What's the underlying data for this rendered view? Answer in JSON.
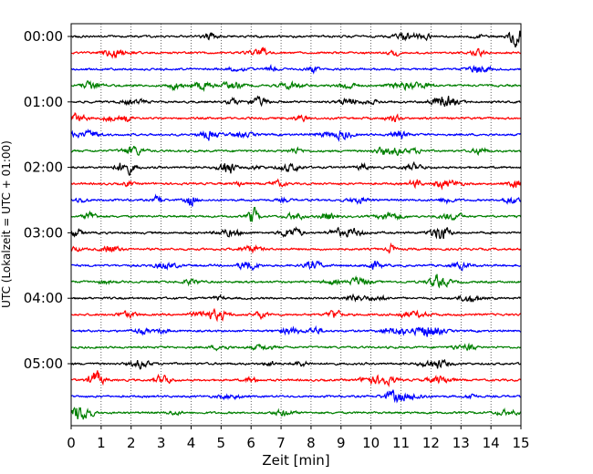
{
  "chart_data": {
    "type": "line",
    "xlabel": "Zeit  [min]",
    "ylabel": "UTC (Lokalzeit = UTC + 01:00)",
    "xlim": [
      0,
      15
    ],
    "xticks": [
      "0",
      "1",
      "2",
      "3",
      "4",
      "5",
      "6",
      "7",
      "8",
      "9",
      "10",
      "11",
      "12",
      "13",
      "14",
      "15"
    ],
    "yticks": [
      "00:00",
      "01:00",
      "02:00",
      "03:00",
      "04:00",
      "05:00"
    ],
    "ytick_minutes": [
      0,
      60,
      120,
      180,
      240,
      300
    ],
    "trace_interval_min": 15,
    "trace_count": 24,
    "trace_colors": [
      "#000000",
      "#ff0000",
      "#0000ff",
      "#008000"
    ],
    "grid": "vertical dotted at each minute",
    "series": [
      {
        "start": "00:00",
        "color": "#000000"
      },
      {
        "start": "00:15",
        "color": "#ff0000"
      },
      {
        "start": "00:30",
        "color": "#0000ff"
      },
      {
        "start": "00:45",
        "color": "#008000"
      },
      {
        "start": "01:00",
        "color": "#000000"
      },
      {
        "start": "01:15",
        "color": "#ff0000"
      },
      {
        "start": "01:30",
        "color": "#0000ff"
      },
      {
        "start": "01:45",
        "color": "#008000"
      },
      {
        "start": "02:00",
        "color": "#000000"
      },
      {
        "start": "02:15",
        "color": "#ff0000"
      },
      {
        "start": "02:30",
        "color": "#0000ff"
      },
      {
        "start": "02:45",
        "color": "#008000"
      },
      {
        "start": "03:00",
        "color": "#000000"
      },
      {
        "start": "03:15",
        "color": "#ff0000"
      },
      {
        "start": "03:30",
        "color": "#0000ff"
      },
      {
        "start": "03:45",
        "color": "#008000"
      },
      {
        "start": "04:00",
        "color": "#000000"
      },
      {
        "start": "04:15",
        "color": "#ff0000"
      },
      {
        "start": "04:30",
        "color": "#0000ff"
      },
      {
        "start": "04:45",
        "color": "#008000"
      },
      {
        "start": "05:00",
        "color": "#000000"
      },
      {
        "start": "05:15",
        "color": "#ff0000"
      },
      {
        "start": "05:30",
        "color": "#0000ff"
      },
      {
        "start": "05:45",
        "color": "#008000"
      }
    ]
  }
}
